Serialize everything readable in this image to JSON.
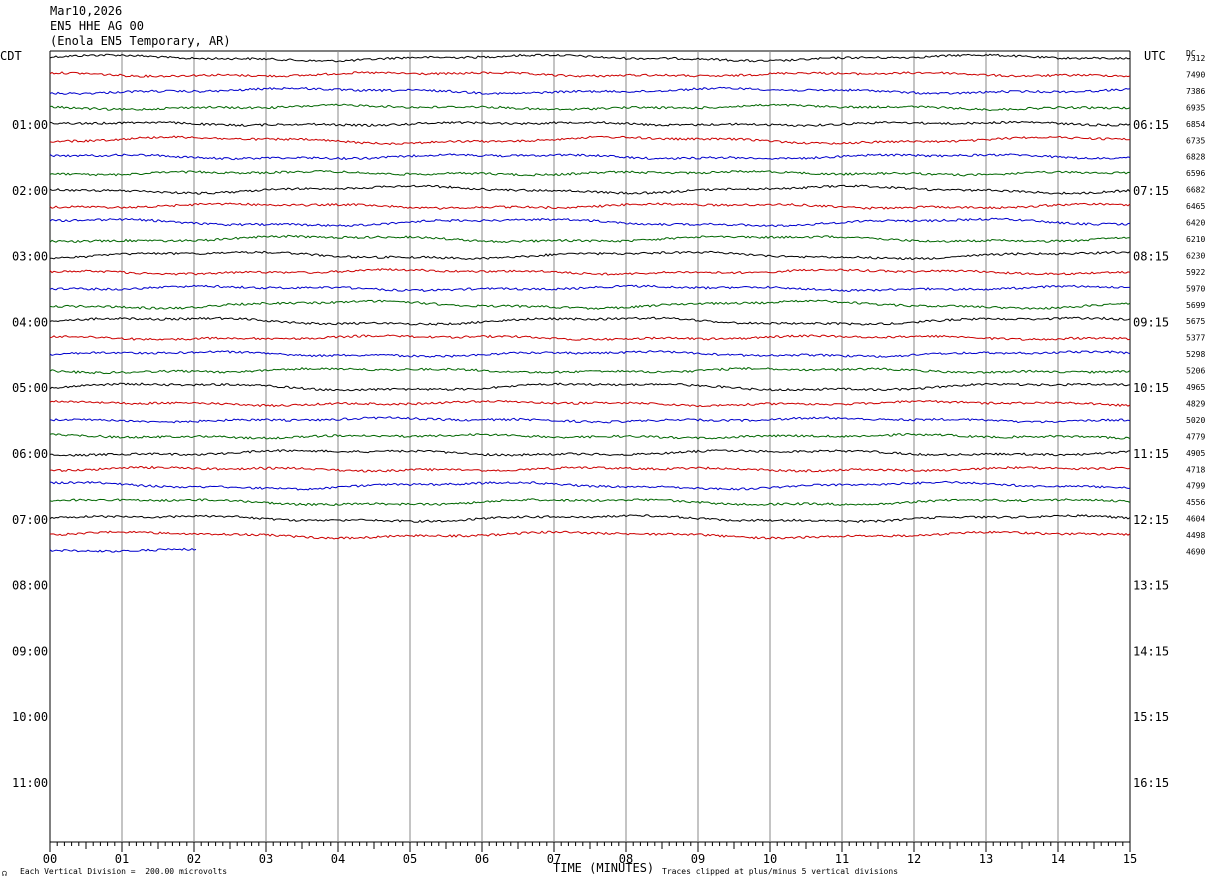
{
  "header": {
    "date": "Mar10,2026",
    "station": "EN5 HHE AG 00",
    "location": "(Enola EN5 Temporary, AR)"
  },
  "left_tz": "CDT",
  "right_tz": "UTC",
  "dc_label": "DC",
  "footer": {
    "scale_note": "Each Vertical Division =  200.00 microvolts",
    "clip_note": "Traces clipped at plus/minus 5 vertical divisions",
    "corner_mark": "☊"
  },
  "chart_data": {
    "type": "line",
    "xlabel": "TIME (MINUTES)",
    "x_ticks": [
      "00",
      "01",
      "02",
      "03",
      "04",
      "05",
      "06",
      "07",
      "08",
      "09",
      "10",
      "11",
      "12",
      "13",
      "14",
      "15"
    ],
    "xlim": [
      0,
      15
    ],
    "left_hour_labels": [
      "01:00",
      "02:00",
      "03:00",
      "04:00",
      "05:00",
      "06:00",
      "07:00",
      "08:00",
      "09:00",
      "10:00",
      "11:00"
    ],
    "right_hour_labels": [
      "06:15",
      "07:15",
      "08:15",
      "09:15",
      "10:15",
      "11:15",
      "12:15",
      "13:15",
      "14:15",
      "15:15",
      "16:15"
    ],
    "trace_colors": [
      "#000000",
      "#cc0000",
      "#0000cc",
      "#006600"
    ],
    "grid": true,
    "dc_offsets": [
      "7312",
      "7490",
      "7386",
      "6935",
      "6854",
      "6735",
      "6828",
      "6596",
      "6682",
      "6465",
      "6420",
      "6210",
      "6230",
      "5922",
      "5970",
      "5699",
      "5675",
      "5377",
      "5298",
      "5206",
      "4965",
      "4829",
      "5020",
      "4779",
      "4905",
      "4718",
      "4799",
      "4556",
      "4604",
      "4498",
      "4690"
    ],
    "last_trace_minutes": 2.05
  }
}
